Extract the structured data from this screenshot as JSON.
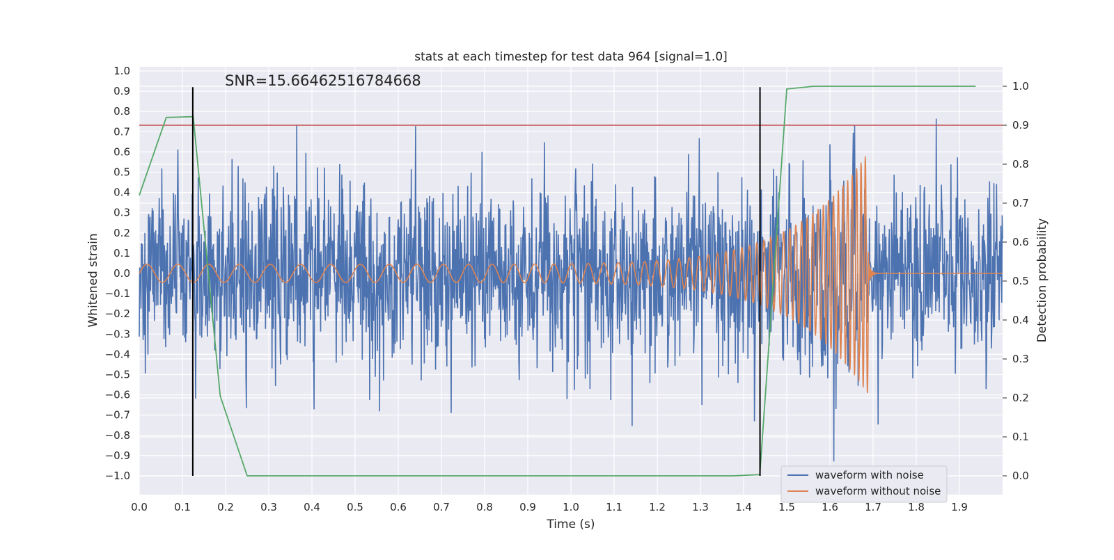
{
  "chart_data": {
    "type": "line",
    "title": "stats at each timestep for test data 964 [signal=1.0]",
    "xlabel": "Time (s)",
    "ylabel_left": "Whitened strain",
    "ylabel_right": "Detection probability",
    "annotation": "SNR=15.66462516784668",
    "xlim": [
      0.0,
      2.0
    ],
    "ylim_left": [
      -1.08,
      1.0
    ],
    "ylim_right": [
      -0.05,
      1.05
    ],
    "x_ticks": [
      "0.0",
      "0.1",
      "0.2",
      "0.3",
      "0.4",
      "0.5",
      "0.6",
      "0.7",
      "0.8",
      "0.9",
      "1.0",
      "1.1",
      "1.2",
      "1.3",
      "1.4",
      "1.5",
      "1.6",
      "1.7",
      "1.8",
      "1.9"
    ],
    "y_left_ticks": [
      "1.0",
      "0.9",
      "0.8",
      "0.7",
      "0.6",
      "0.5",
      "0.4",
      "0.3",
      "0.2",
      "0.1",
      "0.0",
      "−0.1",
      "−0.2",
      "−0.3",
      "−0.4",
      "−0.5",
      "−0.6",
      "−0.7",
      "−0.8",
      "−0.9",
      "−1.0"
    ],
    "y_right_ticks": [
      "1.0",
      "0.9",
      "0.8",
      "0.7",
      "0.6",
      "0.5",
      "0.4",
      "0.3",
      "0.2",
      "0.1",
      "0.0"
    ],
    "grid": true,
    "legend_position": "lower-right",
    "series": [
      {
        "name": "waveform with noise",
        "axis": "left",
        "color": "#4c72b0",
        "description": "noisy whitened strain, amplitude roughly -0.98 to 0.92"
      },
      {
        "name": "waveform without noise",
        "axis": "left",
        "color": "#dd8452",
        "description": "chirp signal, amplitude ~0.05 growing to ~0.6 near t=1.69 s, then flat at 0"
      },
      {
        "name": "",
        "axis": "right",
        "color": "#55a868",
        "x": [
          0.0,
          0.0625,
          0.125,
          0.1875,
          0.25,
          1.375,
          1.4375,
          1.5,
          1.5625,
          1.9375
        ],
        "y": [
          0.72,
          0.92,
          0.922,
          0.205,
          0.0,
          0.0,
          0.003,
          0.993,
          1.0,
          1.0
        ]
      }
    ],
    "threshold_line": {
      "axis": "right",
      "y": 0.9,
      "color": "#c44e52"
    },
    "vertical_markers": {
      "x": [
        0.124,
        1.438
      ],
      "left_range": [
        -1.0,
        0.92
      ],
      "color": "#000000"
    }
  }
}
